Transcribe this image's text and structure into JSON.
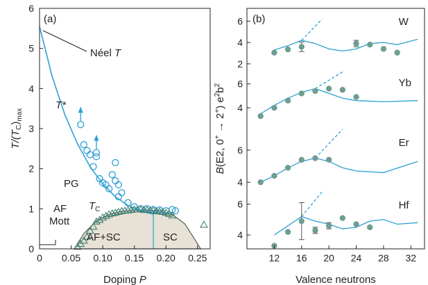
{
  "colors": {
    "axis": "#222222",
    "cyan": "#2e9fd3",
    "teal": "#3d7f72",
    "marker_fill": "#6e9d92",
    "dome_fill": "#e8e1d6",
    "dome_stroke": "#5a5a4e"
  },
  "chart_data": [
    {
      "type": "scatter",
      "panel_label": "(a)",
      "xlabel_text": "Doping",
      "xlabel_var": "P",
      "ylabel_text": "T/(T",
      "ylabel_sub1": "C",
      "ylabel_close": ")",
      "ylabel_sub2": "max",
      "xlim": [
        0,
        0.27
      ],
      "ylim": [
        0,
        6
      ],
      "x_ticks": [
        0,
        0.05,
        0.1,
        0.15,
        0.2,
        0.25
      ],
      "x_tick_labels": [
        "0",
        "0.05",
        "0.10",
        "0.15",
        "0.20",
        "0.25"
      ],
      "y_ticks": [
        0,
        1,
        2,
        3,
        4,
        5,
        6
      ],
      "y_tick_labels": [
        "0",
        "1",
        "2",
        "3",
        "4",
        "5",
        "6"
      ],
      "annotations": {
        "neel": "Néel",
        "neel_var": "T",
        "tstar": "T*",
        "pg": "PG",
        "af": "AF",
        "mott": "Mott",
        "tc_var": "T",
        "tc_sub": "C",
        "afsc": "AF+SC",
        "sc": "SC"
      },
      "tstar_curve": [
        [
          0,
          5.55
        ],
        [
          0.02,
          4.3
        ],
        [
          0.04,
          3.35
        ],
        [
          0.06,
          2.62
        ],
        [
          0.08,
          2.05
        ],
        [
          0.1,
          1.62
        ],
        [
          0.12,
          1.3
        ],
        [
          0.14,
          1.08
        ],
        [
          0.16,
          0.95
        ],
        [
          0.18,
          0.86
        ]
      ],
      "tc_dome": [
        [
          0.055,
          0
        ],
        [
          0.07,
          0.38
        ],
        [
          0.09,
          0.7
        ],
        [
          0.11,
          0.86
        ],
        [
          0.13,
          0.94
        ],
        [
          0.15,
          0.97
        ],
        [
          0.17,
          0.97
        ],
        [
          0.19,
          0.95
        ],
        [
          0.21,
          0.86
        ],
        [
          0.23,
          0.62
        ],
        [
          0.245,
          0.25
        ],
        [
          0.255,
          0
        ]
      ],
      "series": [
        {
          "name": "T* open circles",
          "marker": "circle",
          "points": [
            [
              0.07,
              2.6
            ],
            [
              0.075,
              2.45
            ],
            [
              0.08,
              2.35
            ],
            [
              0.085,
              2.05
            ],
            [
              0.09,
              2.3
            ],
            [
              0.095,
              1.75
            ],
            [
              0.1,
              1.65
            ],
            [
              0.105,
              1.6
            ],
            [
              0.11,
              1.5
            ],
            [
              0.115,
              1.85
            ],
            [
              0.12,
              1.7
            ],
            [
              0.125,
              1.6
            ],
            [
              0.13,
              1.4
            ],
            [
              0.12,
              2.15
            ],
            [
              0.125,
              1.3
            ],
            [
              0.14,
              1.15
            ],
            [
              0.15,
              1.05
            ],
            [
              0.16,
              1.0
            ],
            [
              0.17,
              1.0
            ],
            [
              0.18,
              0.98
            ],
            [
              0.19,
              0.97
            ],
            [
              0.2,
              0.95
            ],
            [
              0.21,
              0.98
            ],
            [
              0.215,
              0.95
            ]
          ]
        },
        {
          "name": "T* lower bounds",
          "marker": "circle-arrow",
          "points": [
            [
              0.065,
              3.1
            ],
            [
              0.09,
              2.4
            ]
          ]
        },
        {
          "name": "Tc triangles",
          "marker": "triangle",
          "points": [
            [
              0.06,
              0.05
            ],
            [
              0.065,
              0.12
            ],
            [
              0.07,
              0.2
            ],
            [
              0.075,
              0.3
            ],
            [
              0.08,
              0.45
            ],
            [
              0.085,
              0.55
            ],
            [
              0.09,
              0.68
            ],
            [
              0.095,
              0.72
            ],
            [
              0.1,
              0.78
            ],
            [
              0.105,
              0.82
            ],
            [
              0.11,
              0.86
            ],
            [
              0.115,
              0.88
            ],
            [
              0.12,
              0.9
            ],
            [
              0.125,
              0.92
            ],
            [
              0.13,
              0.94
            ],
            [
              0.135,
              0.95
            ],
            [
              0.14,
              0.96
            ],
            [
              0.145,
              0.97
            ],
            [
              0.15,
              0.98
            ],
            [
              0.155,
              0.98
            ],
            [
              0.16,
              0.98
            ],
            [
              0.165,
              0.97
            ],
            [
              0.17,
              0.97
            ],
            [
              0.175,
              0.96
            ],
            [
              0.18,
              0.96
            ],
            [
              0.185,
              0.94
            ],
            [
              0.19,
              0.93
            ],
            [
              0.195,
              0.92
            ],
            [
              0.2,
              0.9
            ],
            [
              0.205,
              0.87
            ],
            [
              0.21,
              0.83
            ],
            [
              0.26,
              0.6
            ]
          ]
        }
      ]
    },
    {
      "type": "line",
      "panel_label": "(b)",
      "xlabel_text": "Valence neutrons",
      "ylabel_pre": "B",
      "ylabel_main": "(E2, 0",
      "ylabel_sup1": "+",
      "ylabel_arrow": " → 2",
      "ylabel_sup2": "+",
      "ylabel_units": ") e",
      "ylabel_sup3": "2",
      "ylabel_b": "b",
      "ylabel_sup4": "2",
      "xlim": [
        8,
        34
      ],
      "x_ticks": [
        12,
        16,
        20,
        24,
        28,
        32
      ],
      "x_tick_labels": [
        "12",
        "16",
        "20",
        "24",
        "28",
        "32"
      ],
      "subpanels": [
        {
          "label": "W",
          "y_ticks": [
            2,
            4,
            6
          ],
          "y_tick_labels": [
            "2",
            "4",
            "6"
          ],
          "ylim": [
            1.6,
            7.2
          ],
          "points": [
            [
              12,
              3.05
            ],
            [
              14,
              3.35
            ],
            [
              16,
              3.6
            ],
            [
              24,
              3.9
            ],
            [
              26,
              3.8
            ],
            [
              28,
              3.4
            ],
            [
              30,
              3.05
            ]
          ],
          "errorbars": [
            [
              16,
              3.6,
              0.45
            ],
            [
              24,
              3.9,
              0.3
            ]
          ],
          "theory": [
            [
              12,
              3.3
            ],
            [
              14,
              3.7
            ],
            [
              16,
              4.2
            ],
            [
              18,
              3.9
            ],
            [
              20,
              3.4
            ],
            [
              22,
              3.2
            ],
            [
              24,
              3.4
            ],
            [
              26,
              3.9
            ],
            [
              28,
              4.0
            ],
            [
              30,
              3.8
            ],
            [
              33,
              4.3
            ]
          ],
          "dashed": [
            [
              16,
              4.2
            ],
            [
              19,
              6.2
            ]
          ]
        },
        {
          "label": "Yb",
          "y_ticks": [
            4,
            6
          ],
          "y_tick_labels": [
            "4",
            "6"
          ],
          "ylim": [
            2.2,
            7.2
          ],
          "points": [
            [
              10,
              3.3
            ],
            [
              12,
              4.0
            ],
            [
              14,
              4.6
            ],
            [
              16,
              5.2
            ],
            [
              18,
              5.4
            ],
            [
              20,
              5.6
            ],
            [
              22,
              5.5
            ],
            [
              24,
              4.9
            ]
          ],
          "errorbars": [],
          "theory": [
            [
              10,
              3.5
            ],
            [
              12,
              4.2
            ],
            [
              14,
              4.8
            ],
            [
              16,
              5.3
            ],
            [
              18,
              5.6
            ],
            [
              20,
              5.2
            ],
            [
              22,
              4.8
            ],
            [
              24,
              4.6
            ],
            [
              28,
              4.5
            ],
            [
              33,
              4.6
            ]
          ],
          "dashed": [
            [
              18,
              5.6
            ],
            [
              22,
              7.0
            ]
          ]
        },
        {
          "label": "Er",
          "y_ticks": [
            4,
            6
          ],
          "y_tick_labels": [
            "4",
            "6"
          ],
          "ylim": [
            3.4,
            7.3
          ],
          "points": [
            [
              10,
              4.0
            ],
            [
              12,
              4.4
            ],
            [
              14,
              4.9
            ],
            [
              16,
              5.4
            ],
            [
              18,
              5.5
            ],
            [
              20,
              5.4
            ]
          ],
          "errorbars": [],
          "theory": [
            [
              10,
              4.0
            ],
            [
              12,
              4.4
            ],
            [
              14,
              4.9
            ],
            [
              16,
              5.3
            ],
            [
              18,
              5.5
            ],
            [
              20,
              5.3
            ],
            [
              22,
              4.9
            ],
            [
              24,
              4.7
            ],
            [
              28,
              4.6
            ],
            [
              33,
              5.3
            ]
          ],
          "dashed": [
            [
              18,
              5.5
            ],
            [
              22,
              7.3
            ]
          ]
        },
        {
          "label": "Hf",
          "y_ticks": [
            4,
            6
          ],
          "y_tick_labels": [
            "4",
            "6"
          ],
          "ylim": [
            3.1,
            6.8
          ],
          "points": [
            [
              12,
              3.3
            ],
            [
              14,
              4.2
            ],
            [
              16,
              4.9
            ],
            [
              18,
              4.3
            ],
            [
              20,
              4.6
            ],
            [
              22,
              5.1
            ],
            [
              24,
              4.7
            ],
            [
              26,
              4.5
            ]
          ],
          "errorbars": [
            [
              16,
              4.9,
              1.2
            ],
            [
              18,
              4.3,
              0.2
            ],
            [
              20,
              4.6,
              0.2
            ]
          ],
          "theory": [
            [
              12,
              4.0
            ],
            [
              14,
              4.6
            ],
            [
              16,
              5.2
            ],
            [
              18,
              4.9
            ],
            [
              20,
              4.7
            ],
            [
              22,
              4.4
            ],
            [
              24,
              4.5
            ],
            [
              26,
              4.9
            ],
            [
              28,
              5.0
            ],
            [
              30,
              4.7
            ],
            [
              33,
              4.8
            ]
          ],
          "dashed": [
            [
              16,
              5.2
            ],
            [
              19,
              6.8
            ]
          ]
        }
      ]
    }
  ]
}
